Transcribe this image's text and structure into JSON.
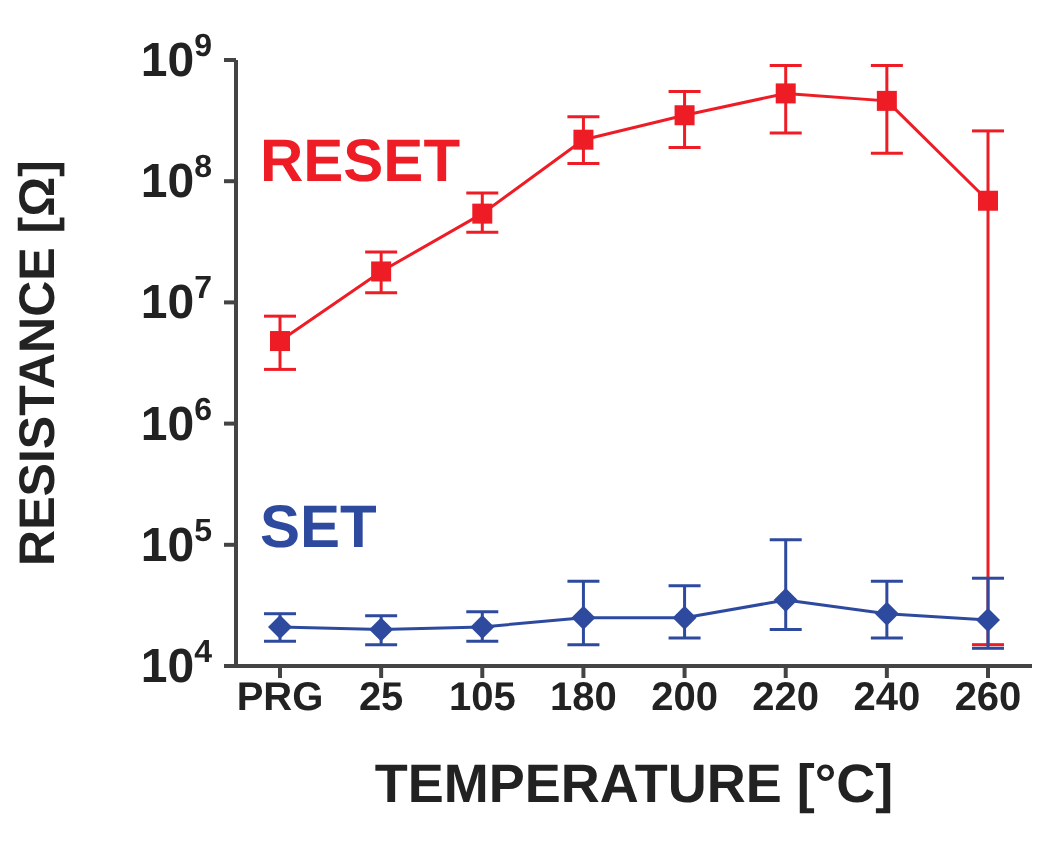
{
  "chart_data": {
    "type": "line",
    "xlabel": "TEMPERATURE [°C]",
    "ylabel": "RESISTANCE [Ω]",
    "categories": [
      "PRG",
      "25",
      "105",
      "180",
      "200",
      "220",
      "240",
      "260"
    ],
    "series": [
      {
        "name": "RESET",
        "color": "#ee1c25",
        "marker": "square",
        "values": [
          4800000.0,
          18000000.0,
          54000000.0,
          220000000.0,
          350000000.0,
          530000000.0,
          460000000.0,
          69000000.0
        ],
        "errors": [
          [
            2800000.0,
            7700000.0
          ],
          [
            12000000.0,
            26000000.0
          ],
          [
            38000000.0,
            80000000.0
          ],
          [
            140000000.0,
            340000000.0
          ],
          [
            190000000.0,
            550000000.0
          ],
          [
            250000000.0,
            900000000.0
          ],
          [
            170000000.0,
            900000000.0
          ],
          [
            15000.0,
            260000000.0
          ]
        ]
      },
      {
        "name": "SET",
        "color": "#2e4a9e",
        "marker": "diamond",
        "values": [
          21000.0,
          20000.0,
          21000.0,
          25000.0,
          25000.0,
          35000.0,
          27000.0,
          24000.0
        ],
        "errors": [
          [
            16000.0,
            27000.0
          ],
          [
            15000.0,
            26000.0
          ],
          [
            16000.0,
            28000.0
          ],
          [
            15000.0,
            50000.0
          ],
          [
            17000.0,
            46000.0
          ],
          [
            20000.0,
            110000.0
          ],
          [
            17000.0,
            50000.0
          ],
          [
            14000.0,
            53000.0
          ]
        ]
      }
    ],
    "log": "y",
    "ylim": [
      10000,
      1000000000
    ],
    "yticks": [
      {
        "value": 10000,
        "label": "10$^{4}$"
      },
      {
        "value": 100000,
        "label": "10$^{5}$"
      },
      {
        "value": 1000000,
        "label": "10$^{6}$"
      },
      {
        "value": 10000000,
        "label": "10$^{7}$"
      },
      {
        "value": 100000000,
        "label": "10$^{8}$"
      },
      {
        "value": 1000000000,
        "label": "10$^{9}$"
      }
    ],
    "grid": false,
    "legend": false
  }
}
